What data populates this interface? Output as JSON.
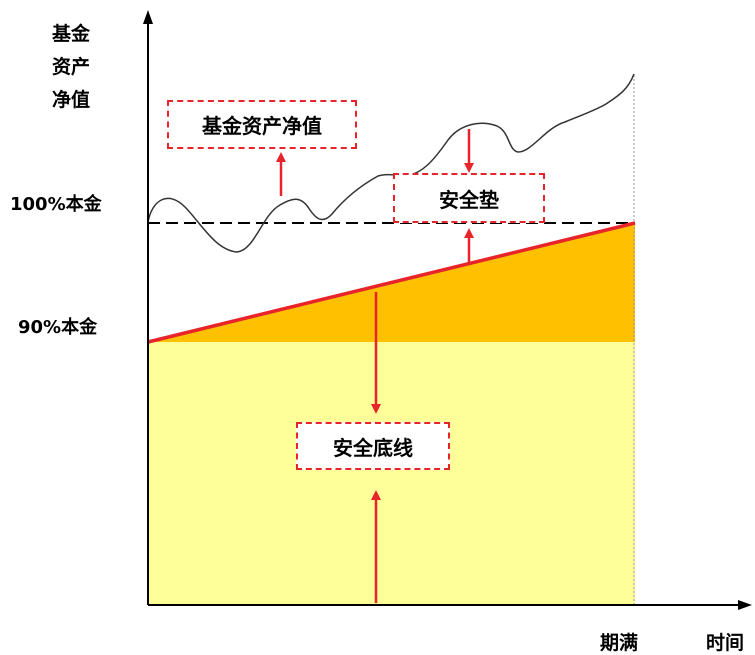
{
  "y_axis": {
    "label_lines": [
      "基金",
      "资产",
      "净值"
    ],
    "tick_100": "100%本金",
    "tick_90": "90%本金"
  },
  "x_axis": {
    "maturity_label": "期满",
    "label": "时间"
  },
  "callouts": {
    "nav": "基金资产净值",
    "cushion": "安全垫",
    "floor": "安全底线"
  },
  "colors": {
    "axis": "#000000",
    "floor_fill": "#ffff99",
    "cushion_fill": "#ffc000",
    "floor_line": "#e8242b",
    "arrow": "#e8242b",
    "dash_box": "#e8242b",
    "nav_curve": "#333333"
  }
}
